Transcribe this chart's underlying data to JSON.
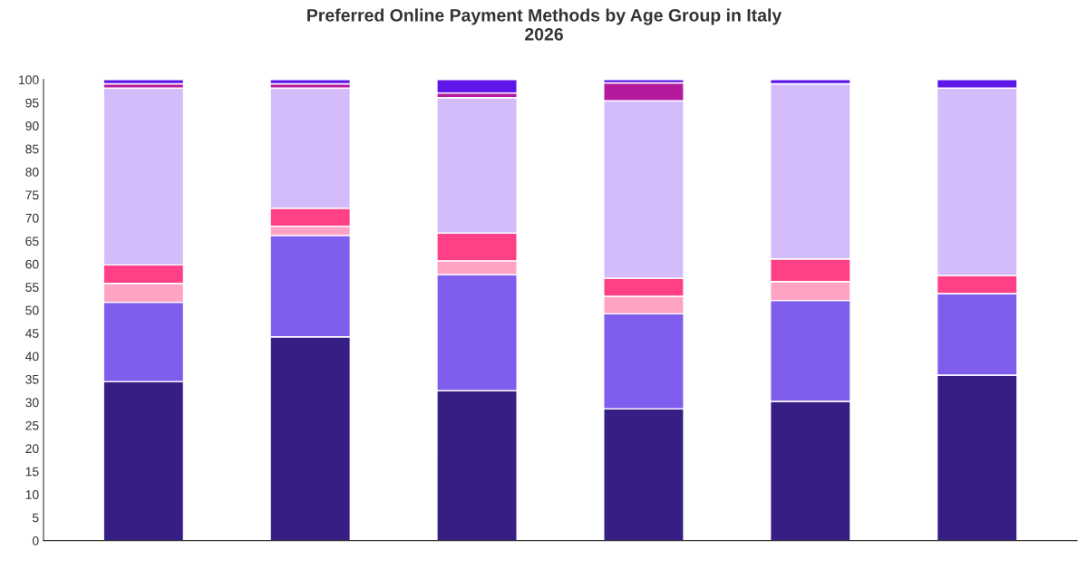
{
  "chart_data": {
    "type": "bar",
    "title": "Preferred Online Payment Methods by Age Group in Italy\n2026",
    "stacked": true,
    "categories": [
      null,
      null,
      null,
      null,
      null,
      null
    ],
    "series": [
      {
        "color": "#371e84",
        "values": [
          34.5,
          44.2,
          32.5,
          28.6,
          30.2,
          35.9
        ]
      },
      {
        "color": "#7f5ded",
        "values": [
          17.2,
          22.0,
          25.2,
          20.6,
          21.9,
          17.7
        ]
      },
      {
        "color": "#ffa3c5",
        "values": [
          4.1,
          2.0,
          3.0,
          3.8,
          4.1,
          0
        ]
      },
      {
        "color": "#ff4086",
        "values": [
          4.0,
          3.9,
          6.0,
          3.9,
          4.9,
          3.9
        ]
      },
      {
        "color": "#d4bcfa",
        "values": [
          38.4,
          26.1,
          29.4,
          38.5,
          38.0,
          40.7
        ]
      },
      {
        "color": "#b31a9e",
        "values": [
          0.9,
          0.9,
          1.0,
          3.9,
          0,
          0
        ]
      },
      {
        "color": "#5e17e8",
        "values": [
          0.9,
          0.9,
          2.9,
          0.7,
          0.9,
          1.8
        ]
      }
    ],
    "ylim": [
      0,
      100
    ],
    "yticks": [
      0,
      5,
      10,
      15,
      20,
      25,
      30,
      35,
      40,
      45,
      50,
      55,
      60,
      65,
      70,
      75,
      80,
      85,
      90,
      95,
      100
    ],
    "grid": false
  }
}
